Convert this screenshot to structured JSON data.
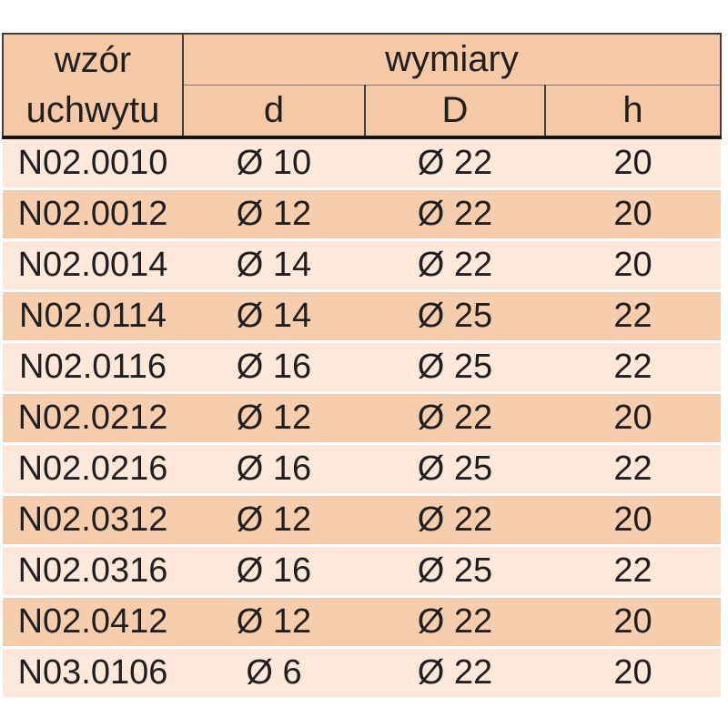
{
  "colors": {
    "page_bg": "#ffffff",
    "header_bg": "#f5c9a6",
    "row_light": "#fde8da",
    "row_dark": "#f7cead",
    "border_thin": "#3e3e3e",
    "border_inner": "#7a7a7a",
    "border_thick": "#161616",
    "text": "#1f1f1f",
    "row_gap": "#ffffff"
  },
  "table": {
    "header": {
      "pattern_line1": "wzór",
      "pattern_line2": "uchwytu",
      "group": "wymiary",
      "col_d": "d",
      "col_D": "D",
      "col_h": "h"
    },
    "rows": [
      {
        "code": "N02.0010",
        "d": "Ø 10",
        "D": "Ø 22",
        "h": "20"
      },
      {
        "code": "N02.0012",
        "d": "Ø 12",
        "D": "Ø 22",
        "h": "20"
      },
      {
        "code": "N02.0014",
        "d": "Ø 14",
        "D": "Ø 22",
        "h": "20"
      },
      {
        "code": "N02.0114",
        "d": "Ø 14",
        "D": "Ø 25",
        "h": "22"
      },
      {
        "code": "N02.0116",
        "d": "Ø 16",
        "D": "Ø 25",
        "h": "22"
      },
      {
        "code": "N02.0212",
        "d": "Ø 12",
        "D": "Ø 22",
        "h": "20"
      },
      {
        "code": "N02.0216",
        "d": "Ø 16",
        "D": "Ø 25",
        "h": "22"
      },
      {
        "code": "N02.0312",
        "d": "Ø 12",
        "D": "Ø 22",
        "h": "20"
      },
      {
        "code": "N02.0316",
        "d": "Ø 16",
        "D": "Ø 25",
        "h": "22"
      },
      {
        "code": "N02.0412",
        "d": "Ø 12",
        "D": "Ø 22",
        "h": "20"
      },
      {
        "code": "N03.0106",
        "d": "Ø 6",
        "D": "Ø 22",
        "h": "20"
      }
    ]
  }
}
